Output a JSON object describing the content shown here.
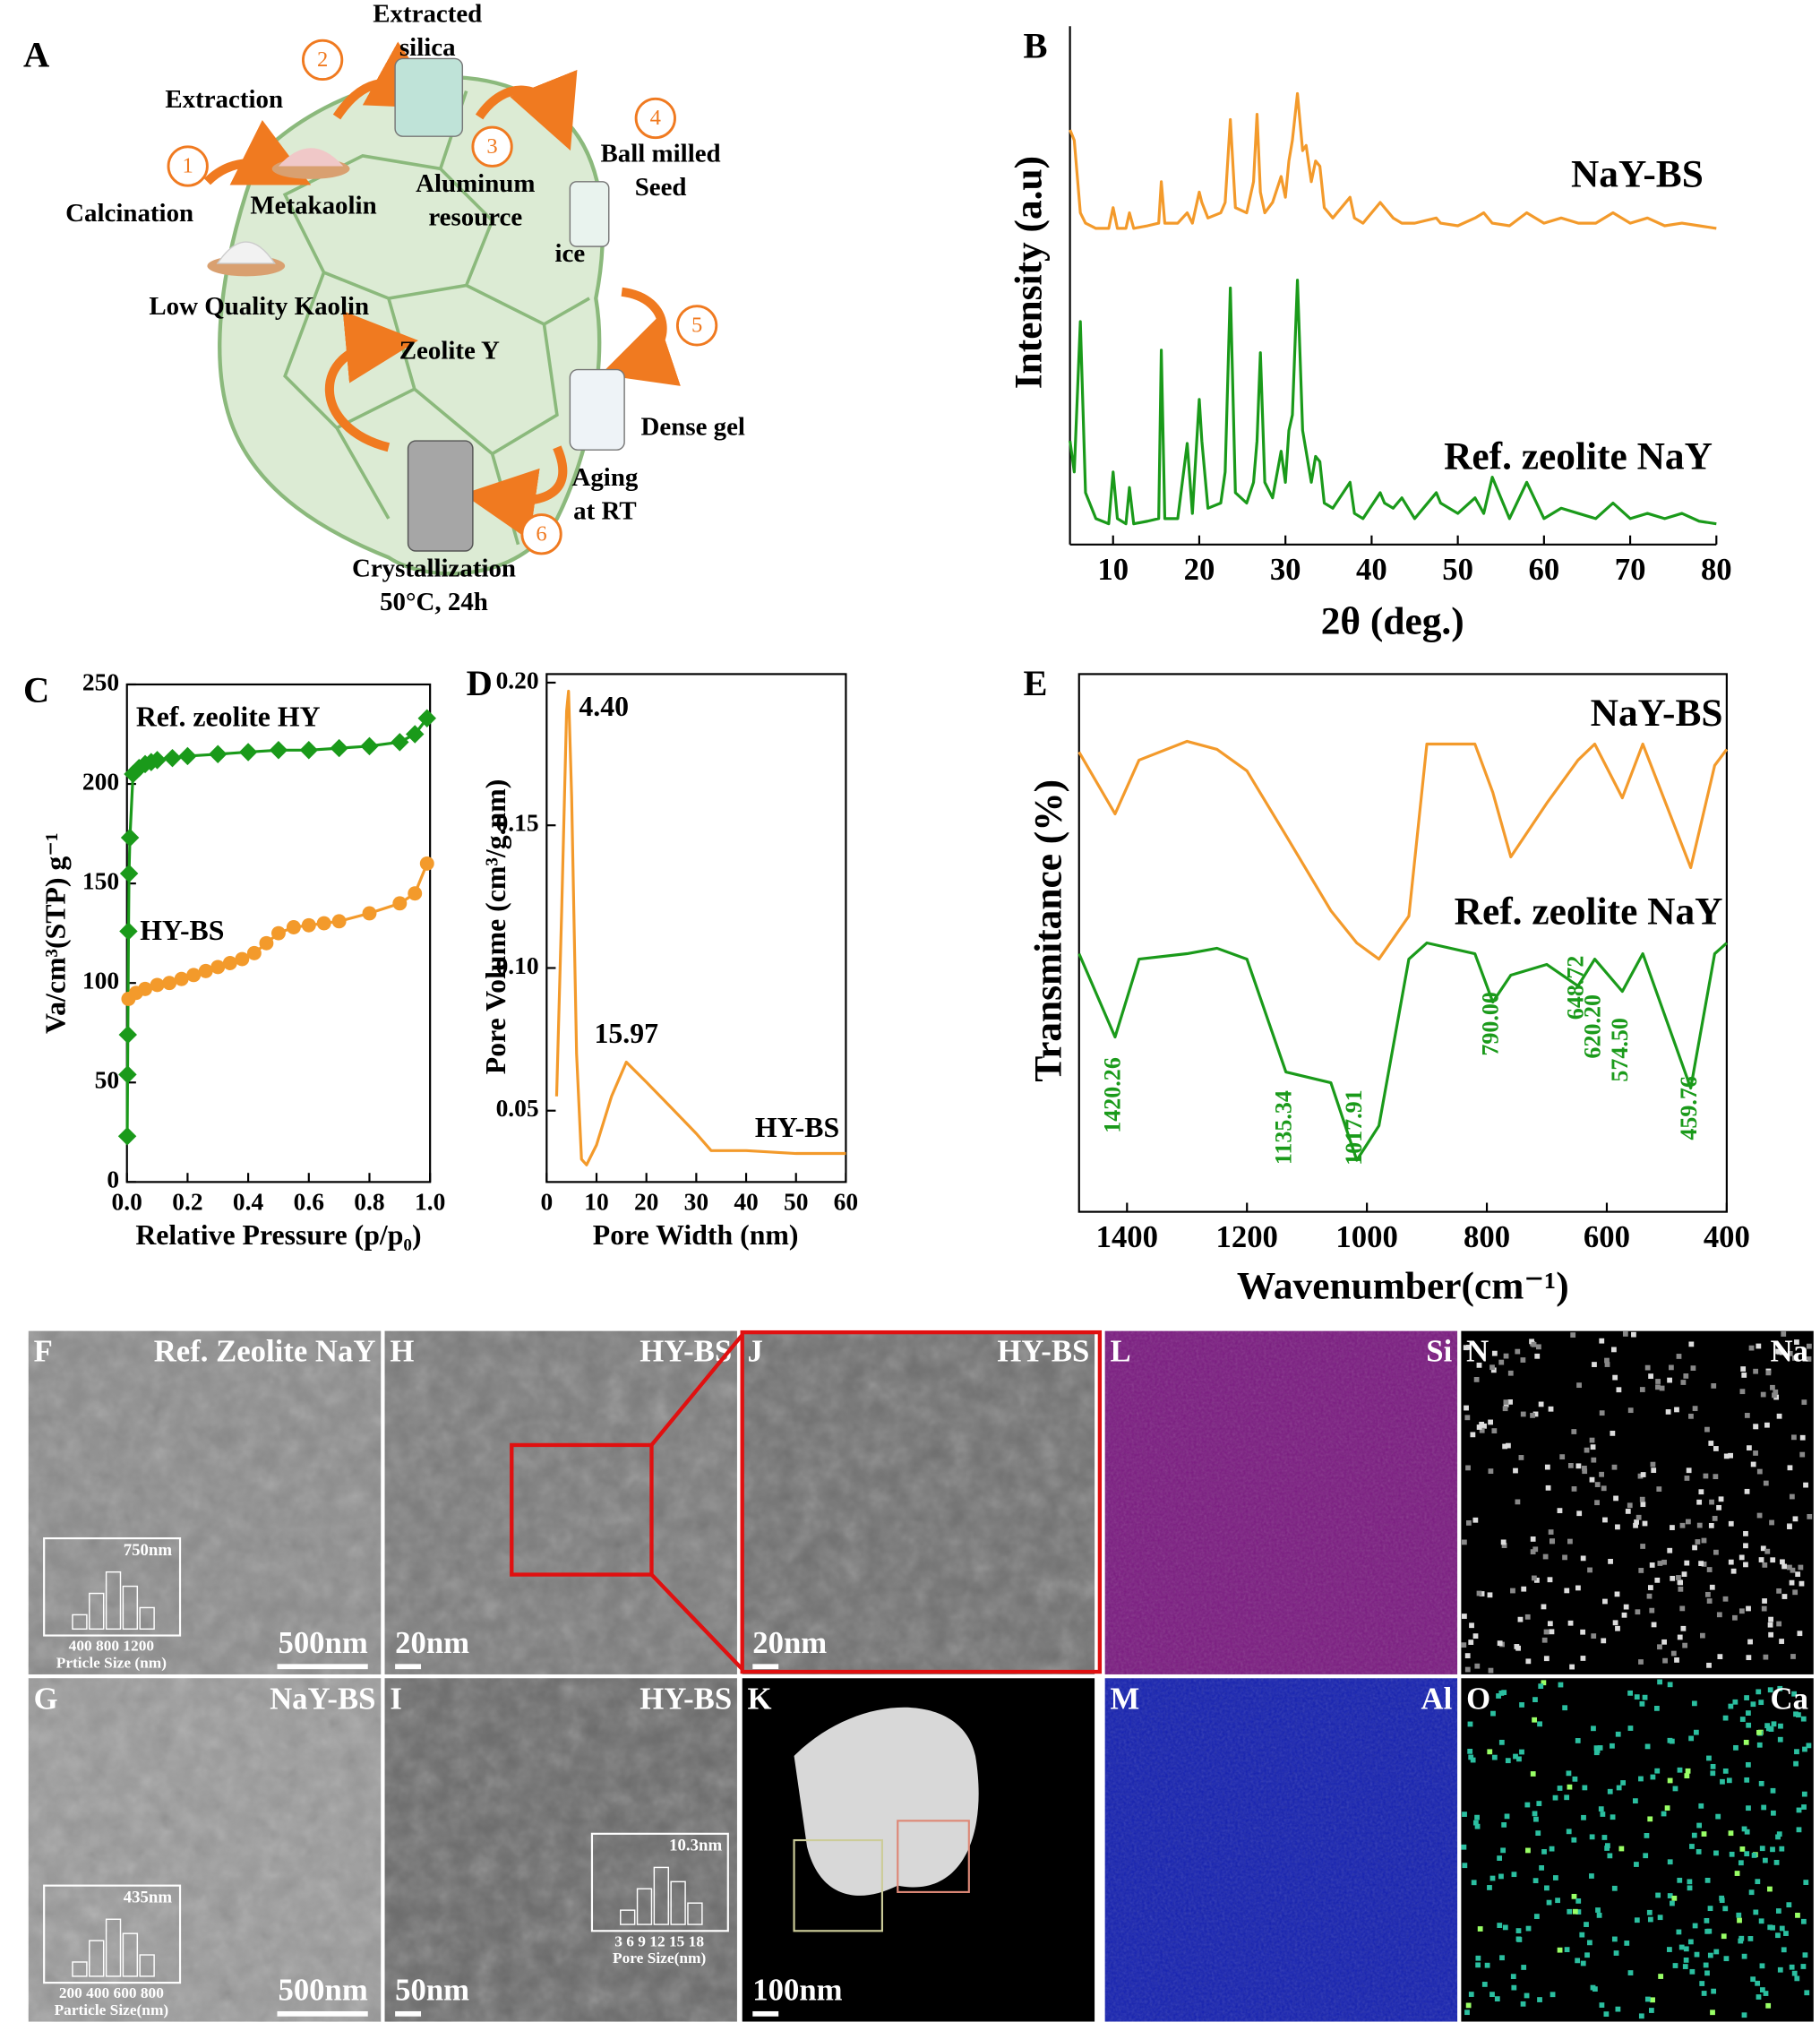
{
  "diagram": {
    "label": "A",
    "steps": [
      1,
      2,
      3,
      4,
      5,
      6
    ],
    "labels": [
      [
        "Extracted",
        "silica"
      ],
      [
        "Extraction"
      ],
      [
        "Metakaolin"
      ],
      [
        "Calcination"
      ],
      [
        "Low Quality Kaolin"
      ],
      [
        "Aluminum",
        "resource"
      ],
      [
        "Ball milled",
        "Seed"
      ],
      [
        "ice"
      ],
      [
        "Zeolite Y"
      ],
      [
        "Dense gel"
      ],
      [
        "Aging",
        "at RT"
      ],
      [
        "Crystallization",
        "50°C, 24h"
      ]
    ]
  },
  "chart_data": [
    {
      "type": "line",
      "label": "B",
      "xlabel": "2θ (deg.)",
      "ylabel": "Intensity (a.u)",
      "xlim": [
        5,
        80
      ],
      "xticks": [
        10,
        20,
        30,
        40,
        50,
        60,
        70,
        80
      ],
      "ylim": [
        0,
        100
      ],
      "x": [
        5,
        5.5,
        6.2,
        6.8,
        8,
        9.5,
        10,
        10.5,
        11.5,
        11.9,
        12.4,
        14,
        15.3,
        15.6,
        16,
        17.5,
        18.6,
        19.2,
        20,
        20.3,
        21,
        22.5,
        23,
        23.6,
        24.2,
        25.5,
        26.3,
        26.7,
        27.1,
        27.6,
        28.5,
        29.5,
        30,
        30.4,
        30.8,
        31.4,
        32,
        32.4,
        33,
        33.5,
        34,
        34.5,
        35.5,
        37.5,
        38,
        39,
        41,
        41.5,
        42.5,
        43.5,
        45,
        47.5,
        48,
        50,
        52,
        53,
        54,
        56,
        58,
        60,
        62,
        64,
        66,
        68,
        70,
        72,
        74,
        76,
        78,
        80
      ],
      "series": [
        {
          "name": "NaY-BS",
          "color": "#f39a2b",
          "values": [
            80,
            78,
            64,
            62,
            61,
            61,
            65,
            61,
            61,
            64,
            61,
            61.5,
            62,
            70,
            62,
            62,
            64,
            62,
            68,
            66,
            63,
            64,
            66,
            82,
            65,
            64,
            70,
            83,
            68,
            64,
            66,
            71,
            67,
            74,
            78,
            87,
            76,
            77,
            70,
            74,
            73,
            65,
            63,
            67,
            63,
            62,
            66,
            65,
            63,
            62,
            62,
            63,
            62,
            61.5,
            63,
            64,
            62,
            61.5,
            64,
            62,
            63,
            62,
            62,
            64,
            62,
            63,
            61.5,
            62,
            61.5,
            61
          ]
        },
        {
          "name": "Ref. zeolite NaY",
          "color": "#1a9a1a",
          "values": [
            20,
            14,
            43,
            10,
            5,
            4,
            14,
            5,
            4,
            11,
            4,
            4.5,
            5,
            37.5,
            5,
            5,
            19.5,
            6,
            28,
            20,
            7,
            8,
            14,
            49.5,
            10,
            8,
            12,
            20,
            37,
            12,
            9,
            18,
            12,
            22,
            25,
            51,
            22,
            18,
            12,
            17,
            16,
            8,
            7,
            12,
            6,
            5,
            10,
            8,
            7,
            9,
            5,
            10,
            8,
            6,
            9,
            6,
            13,
            5,
            12,
            5,
            7,
            6,
            5,
            8,
            5,
            6,
            5,
            6,
            4.5,
            4
          ]
        }
      ]
    },
    {
      "type": "line",
      "label": "C",
      "xlabel": "Relative Pressure (p/p₀)",
      "ylabel": "Va/cm³(STP) g⁻¹",
      "xlim": [
        0,
        1
      ],
      "xticks": [
        {
          "value": 0,
          "label": "0.0"
        },
        0.2,
        0.4,
        0.6,
        0.8,
        {
          "value": 1,
          "label": "1.0"
        }
      ],
      "ylim": [
        0,
        250
      ],
      "yticks": [
        0,
        50,
        100,
        150,
        200,
        250
      ],
      "series": [
        {
          "name": "Ref. zeolite HY",
          "color": "#1a9a1a",
          "marker": "diamond",
          "x": [
            0.001,
            0.002,
            0.003,
            0.005,
            0.007,
            0.01,
            0.02,
            0.04,
            0.06,
            0.08,
            0.1,
            0.15,
            0.2,
            0.3,
            0.4,
            0.5,
            0.6,
            0.7,
            0.8,
            0.9,
            0.95,
            0.99
          ],
          "values": [
            23,
            54,
            74,
            126,
            155,
            173,
            205,
            208,
            210,
            211,
            212,
            213,
            214,
            215,
            216,
            217,
            217,
            218,
            219,
            221,
            225,
            233
          ]
        },
        {
          "name": "HY-BS",
          "color": "#f39a2b",
          "marker": "circle",
          "x": [
            0.005,
            0.03,
            0.06,
            0.1,
            0.14,
            0.18,
            0.22,
            0.26,
            0.3,
            0.34,
            0.38,
            0.42,
            0.46,
            0.5,
            0.55,
            0.6,
            0.65,
            0.7,
            0.8,
            0.9,
            0.95,
            0.99
          ],
          "values": [
            92,
            95,
            97,
            99,
            100,
            102,
            104,
            106,
            108,
            110,
            112,
            115,
            120,
            125,
            128,
            129,
            130,
            131,
            135,
            140,
            145,
            160
          ]
        }
      ]
    },
    {
      "type": "line",
      "label": "D",
      "xlabel": "Pore Width (nm)",
      "ylabel": "Pore Volume (cm³/g.nm)",
      "xlim": [
        0,
        60
      ],
      "xticks": [
        0,
        10,
        20,
        30,
        40,
        50,
        60
      ],
      "ylim": [
        0.025,
        0.203
      ],
      "yticks": [
        0.05,
        {
          "value": 0.1,
          "label": "0.10"
        },
        0.15,
        {
          "value": 0.2,
          "label": "0.20"
        }
      ],
      "series": [
        {
          "name": "HY-BS",
          "color": "#f39a2b",
          "x": [
            2,
            3,
            4,
            4.4,
            5,
            6,
            7,
            8,
            10,
            13,
            15.97,
            20,
            25,
            30,
            33,
            40,
            50,
            60
          ],
          "values": [
            0.055,
            0.12,
            0.19,
            0.197,
            0.16,
            0.07,
            0.033,
            0.031,
            0.038,
            0.055,
            0.067,
            0.06,
            0.051,
            0.042,
            0.036,
            0.036,
            0.035,
            0.035
          ]
        }
      ],
      "annotations": [
        {
          "text": "4.40",
          "x": 4.4,
          "y": 0.197
        },
        {
          "text": "15.97",
          "x": 15.97,
          "y": 0.067
        }
      ]
    },
    {
      "type": "line",
      "label": "E",
      "xlabel": "Wavenumber(cm⁻¹)",
      "ylabel": "Transmitance (%)",
      "xlim": [
        1480,
        400
      ],
      "xticks": [
        1400,
        1200,
        1000,
        800,
        600,
        400
      ],
      "ylim": [
        0,
        100
      ],
      "x": [
        1480,
        1420,
        1380,
        1300,
        1250,
        1200,
        1135,
        1060,
        1017,
        980,
        930,
        900,
        820,
        790,
        760,
        700,
        648,
        620,
        574,
        540,
        460,
        420,
        400
      ],
      "series": [
        {
          "name": "NaY-BS",
          "color": "#f39a2b",
          "values": [
            85.5,
            74,
            84,
            87.5,
            86,
            82,
            70,
            56,
            50,
            47,
            55,
            87,
            87,
            78,
            66,
            76,
            84,
            87,
            77,
            87,
            64,
            83,
            86
          ]
        },
        {
          "name": "Ref. zeolite NaY",
          "color": "#1a9a1a",
          "values": [
            48,
            32.5,
            47,
            48,
            49,
            47,
            26,
            24,
            9.6,
            16,
            47,
            50,
            48,
            39,
            44,
            46,
            42,
            47,
            41,
            48,
            23,
            48,
            50
          ]
        }
      ],
      "annotations": [
        {
          "text": "1420.26",
          "x": 1420.26
        },
        {
          "text": "1135.34",
          "x": 1135.34
        },
        {
          "text": "1017.91",
          "x": 1017.91
        },
        {
          "text": "790.00",
          "x": 790
        },
        {
          "text": "648.72",
          "x": 648.72
        },
        {
          "text": "620.20",
          "x": 620.2
        },
        {
          "text": "574.50",
          "x": 574.5
        },
        {
          "text": "459.76",
          "x": 459.76
        }
      ]
    }
  ],
  "micrographs": [
    {
      "letter": "F",
      "title": "Ref. Zeolite NaY",
      "scale": "500nm",
      "inset": {
        "peak": "750nm",
        "ticks": "400 800 1200",
        "axis": "Prticle Size (nm)"
      }
    },
    {
      "letter": "H",
      "title": "HY-BS",
      "scale": "20nm"
    },
    {
      "letter": "J",
      "title": "HY-BS",
      "scale": "20nm"
    },
    {
      "letter": "L",
      "title": "Si"
    },
    {
      "letter": "N",
      "title": "Na"
    },
    {
      "letter": "G",
      "title": "NaY-BS",
      "scale": "500nm",
      "inset": {
        "peak": "435nm",
        "ticks": "200 400 600 800",
        "axis": "Particle Size(nm)"
      }
    },
    {
      "letter": "I",
      "title": "HY-BS",
      "scale": "50nm",
      "inset": {
        "peak": "10.3nm",
        "ticks": "3 6 9 12 15 18",
        "axis": "Pore Size(nm)"
      }
    },
    {
      "letter": "K",
      "scale": "100nm"
    },
    {
      "letter": "M",
      "title": "Al"
    },
    {
      "letter": "O",
      "title": "Ca"
    }
  ]
}
